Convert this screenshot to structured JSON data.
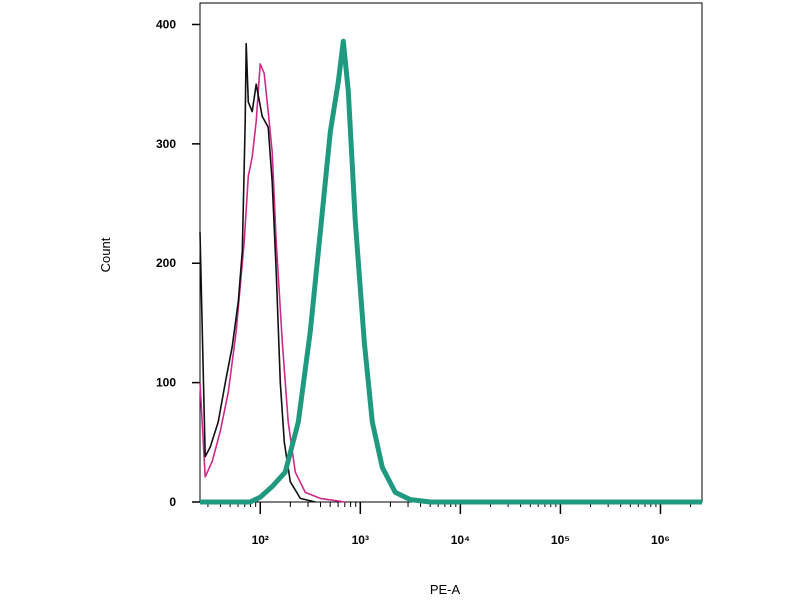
{
  "chart_data": {
    "type": "line",
    "x_label": "PE-A",
    "y_label": "Count",
    "x_scale": "log",
    "xlim": [
      25,
      2600000
    ],
    "xticks": [
      {
        "value": 100,
        "label": "10²"
      },
      {
        "value": 1000,
        "label": "10³"
      },
      {
        "value": 10000,
        "label": "10⁴"
      },
      {
        "value": 100000,
        "label": "10⁵"
      },
      {
        "value": 1000000,
        "label": "10⁶"
      }
    ],
    "ylim": [
      0,
      418
    ],
    "yticks": [
      0,
      100,
      200,
      300,
      400
    ],
    "series": [
      {
        "color": "#cc2a8a",
        "line_width": 1.6,
        "x": [
          25,
          28.2,
          33.1,
          39.8,
          47.9,
          57.5,
          69.2,
          75.9,
          83.2,
          91.2,
          100,
          109.6,
          120.2,
          131.8,
          144.5,
          166,
          190.5,
          223.9,
          281.8,
          398.1,
          707.9
        ],
        "values": [
          100,
          21,
          34,
          59,
          92,
          143,
          218,
          273,
          289,
          319,
          367,
          359,
          327,
          293,
          218,
          134,
          67,
          25,
          8,
          3,
          0
        ]
      },
      {
        "color": "#111111",
        "line_width": 1.6,
        "x": [
          25,
          28.2,
          31.6,
          38,
          44.7,
          52.5,
          60.3,
          66.1,
          70.8,
          72.4,
          75.9,
          83.2,
          91.2,
          104.7,
          120.2,
          131.8,
          144.5,
          158.5,
          173.8,
          199.5,
          251.2,
          354.8
        ],
        "values": [
          226,
          38,
          46,
          67,
          100,
          130,
          168,
          210,
          319,
          384,
          335,
          327,
          350,
          323,
          314,
          268,
          193,
          100,
          50,
          17,
          3,
          0
        ]
      },
      {
        "color": "#1f9a80",
        "line_width": 5,
        "x": [
          25,
          79.4,
          100,
          131.8,
          177.8,
          239.9,
          316.2,
          398.1,
          501.2,
          602.6,
          676.1,
          758.6,
          891.3,
          1096,
          1318,
          1660,
          2239,
          3162,
          5012,
          2600000
        ],
        "values": [
          0,
          0,
          4,
          13,
          25,
          67,
          143,
          226,
          310,
          352,
          386,
          344,
          235,
          134,
          67,
          29,
          8,
          2,
          0,
          0
        ]
      }
    ]
  }
}
